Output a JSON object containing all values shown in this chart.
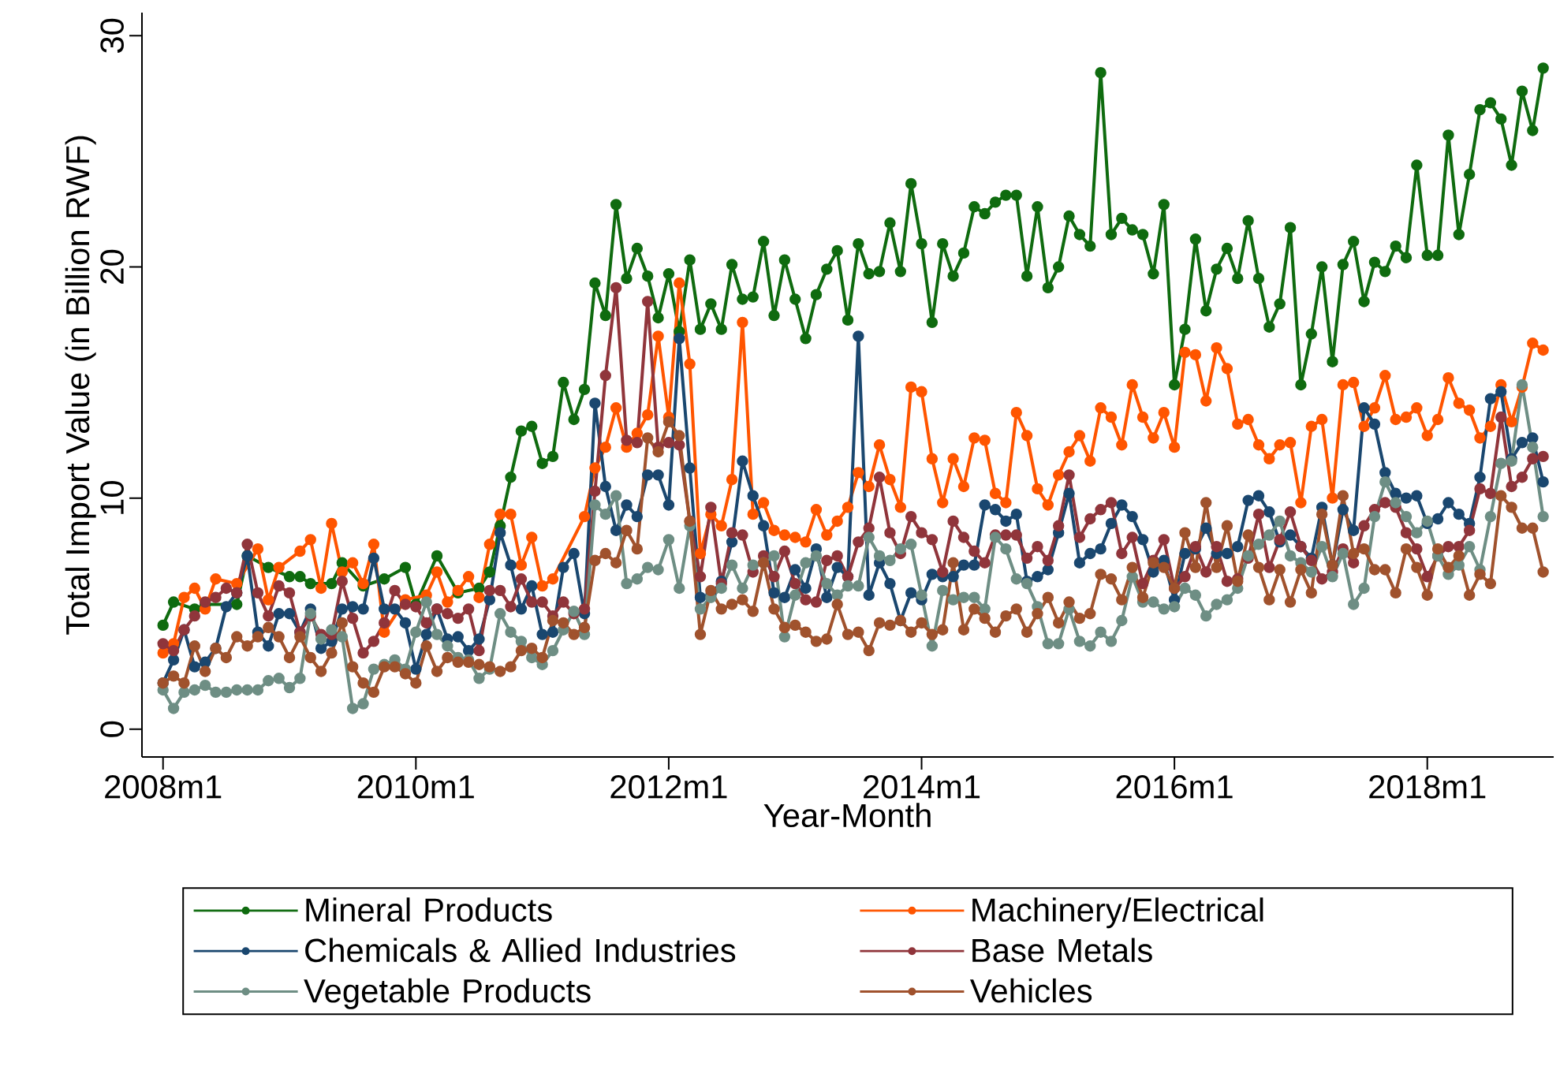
{
  "chart_data": {
    "type": "line",
    "xlabel": "Year-Month",
    "ylabel": "Total Import Value (in Billion RWF)",
    "x": [
      "2008-01",
      "2008-02",
      "2008-03",
      "2008-04",
      "2008-05",
      "2008-06",
      "2008-07",
      "2008-08",
      "2008-09",
      "2008-10",
      "2008-11",
      "2008-12",
      "2009-01",
      "2009-02",
      "2009-03",
      "2009-04",
      "2009-05",
      "2009-06",
      "2009-07",
      "2009-08",
      "2009-09",
      "2009-10",
      "2009-11",
      "2009-12",
      "2010-01",
      "2010-02",
      "2010-03",
      "2010-04",
      "2010-05",
      "2010-06",
      "2010-07",
      "2010-08",
      "2010-09",
      "2010-10",
      "2010-11",
      "2010-12",
      "2011-01",
      "2011-02",
      "2011-03",
      "2011-04",
      "2011-05",
      "2011-06",
      "2011-07",
      "2011-08",
      "2011-09",
      "2011-10",
      "2011-11",
      "2011-12",
      "2012-01",
      "2012-02",
      "2012-03",
      "2012-04",
      "2012-05",
      "2012-06",
      "2012-07",
      "2012-08",
      "2012-09",
      "2012-10",
      "2012-11",
      "2012-12",
      "2013-01",
      "2013-02",
      "2013-03",
      "2013-04",
      "2013-05",
      "2013-06",
      "2013-07",
      "2013-08",
      "2013-09",
      "2013-10",
      "2013-11",
      "2013-12",
      "2014-01",
      "2014-02",
      "2014-03",
      "2014-04",
      "2014-05",
      "2014-06",
      "2014-07",
      "2014-08",
      "2014-09",
      "2014-10",
      "2014-11",
      "2014-12",
      "2015-01",
      "2015-02",
      "2015-03",
      "2015-04",
      "2015-05",
      "2015-06",
      "2015-07",
      "2015-08",
      "2015-09",
      "2015-10",
      "2015-11",
      "2015-12",
      "2016-01",
      "2016-02",
      "2016-03",
      "2016-04",
      "2016-05",
      "2016-06",
      "2016-07",
      "2016-08",
      "2016-09",
      "2016-10",
      "2016-11",
      "2016-12",
      "2017-01",
      "2017-02",
      "2017-03",
      "2017-04",
      "2017-05",
      "2017-06",
      "2017-07",
      "2017-08",
      "2017-09",
      "2017-10",
      "2017-11",
      "2017-12",
      "2018-01",
      "2018-02",
      "2018-03",
      "2018-04",
      "2018-05",
      "2018-06",
      "2018-07",
      "2018-08",
      "2018-09",
      "2018-10",
      "2018-11",
      "2018-12"
    ],
    "xlim": [
      "2007-11",
      "2019-01"
    ],
    "xticks": [
      {
        "value": "2008-01",
        "label": "2008m1"
      },
      {
        "value": "2010-01",
        "label": "2010m1"
      },
      {
        "value": "2012-01",
        "label": "2012m1"
      },
      {
        "value": "2014-01",
        "label": "2014m1"
      },
      {
        "value": "2016-01",
        "label": "2016m1"
      },
      {
        "value": "2018-01",
        "label": "2018m1"
      }
    ],
    "ylim": [
      -1.2,
      31
    ],
    "yticks": [
      0,
      10,
      20,
      30
    ],
    "marker": "circle",
    "legend": "bottom",
    "series": [
      {
        "name": "Mineral Products",
        "color": "#0f6b0f",
        "x": [
          "2008-01",
          "2008-02",
          "2008-04",
          "2008-05",
          "2008-08",
          "2008-09",
          "2008-11",
          "2009-01",
          "2009-02",
          "2009-03",
          "2009-05",
          "2009-06",
          "2009-08",
          "2009-10",
          "2009-12",
          "2010-01",
          "2010-03",
          "2010-05",
          "2010-07",
          "2010-08",
          "2010-09",
          "2010-10",
          "2010-11",
          "2010-12",
          "2011-01",
          "2011-02",
          "2011-03",
          "2011-04",
          "2011-05",
          "2011-06",
          "2011-07",
          "2011-08",
          "2011-09",
          "2011-10",
          "2011-11",
          "2011-12",
          "2012-01",
          "2012-02",
          "2012-03",
          "2012-04",
          "2012-05",
          "2012-06",
          "2012-07",
          "2012-08",
          "2012-09",
          "2012-10",
          "2012-11",
          "2012-12",
          "2013-01",
          "2013-02",
          "2013-03",
          "2013-04",
          "2013-05",
          "2013-06",
          "2013-07",
          "2013-08",
          "2013-09",
          "2013-10",
          "2013-11",
          "2013-12",
          "2014-01",
          "2014-02",
          "2014-03",
          "2014-04",
          "2014-05",
          "2014-06",
          "2014-07",
          "2014-08",
          "2014-09",
          "2014-10",
          "2014-11",
          "2014-12",
          "2015-01",
          "2015-02",
          "2015-03",
          "2015-04",
          "2015-05",
          "2015-06",
          "2015-07",
          "2015-08",
          "2015-09",
          "2015-10",
          "2015-11",
          "2015-12",
          "2016-01",
          "2016-02",
          "2016-03",
          "2016-04",
          "2016-05",
          "2016-06",
          "2016-07",
          "2016-08",
          "2016-09",
          "2016-10",
          "2016-11",
          "2016-12",
          "2017-01",
          "2017-02",
          "2017-03",
          "2017-04",
          "2017-05",
          "2017-06",
          "2017-07",
          "2017-08",
          "2017-09",
          "2017-10",
          "2017-11",
          "2017-12",
          "2018-01",
          "2018-02",
          "2018-03",
          "2018-04",
          "2018-05",
          "2018-06",
          "2018-07",
          "2018-08",
          "2018-09",
          "2018-10",
          "2018-11",
          "2018-12"
        ],
        "values": [
          4.5,
          5.5,
          5.2,
          5.4,
          5.4,
          7.5,
          7.0,
          6.6,
          6.6,
          6.3,
          6.3,
          7.2,
          6.2,
          6.5,
          7.0,
          5.4,
          7.5,
          5.9,
          6.1,
          6.8,
          8.8,
          10.9,
          12.9,
          13.1,
          11.5,
          11.8,
          15.0,
          13.4,
          14.7,
          19.3,
          17.9,
          22.7,
          19.5,
          20.8,
          19.6,
          17.8,
          19.7,
          17.2,
          20.3,
          17.3,
          18.4,
          17.3,
          20.1,
          18.6,
          18.7,
          21.1,
          17.9,
          20.3,
          18.6,
          16.9,
          18.8,
          19.9,
          20.7,
          17.7,
          21.0,
          19.7,
          19.8,
          21.9,
          19.8,
          23.6,
          21.0,
          17.6,
          21.0,
          19.6,
          20.6,
          22.6,
          22.3,
          22.8,
          23.1,
          23.1,
          19.6,
          22.6,
          19.1,
          20.0,
          22.2,
          21.4,
          20.9,
          28.4,
          21.4,
          22.1,
          21.6,
          21.4,
          19.7,
          22.7,
          14.9,
          17.3,
          21.2,
          18.1,
          19.9,
          20.8,
          19.5,
          22.0,
          19.5,
          17.4,
          18.4,
          21.7,
          14.9,
          17.1,
          20.0,
          15.9,
          20.1,
          21.1,
          18.5,
          20.2,
          19.8,
          20.9,
          20.4,
          24.4,
          20.5,
          20.5,
          25.7,
          21.4,
          24.0,
          26.8,
          27.1,
          26.4,
          24.4,
          27.6,
          25.9,
          28.6
        ]
      },
      {
        "name": "Machinery/Electrical",
        "color": "#ff5500",
        "x": [
          "2008-01",
          "2008-02",
          "2008-03",
          "2008-04",
          "2008-05",
          "2008-06",
          "2008-08",
          "2008-10",
          "2008-11",
          "2008-12",
          "2009-02",
          "2009-03",
          "2009-04",
          "2009-05",
          "2009-06",
          "2009-07",
          "2009-08",
          "2009-09",
          "2009-10",
          "2009-12",
          "2010-02",
          "2010-03",
          "2010-04",
          "2010-05",
          "2010-06",
          "2010-07",
          "2010-08",
          "2010-09",
          "2010-10",
          "2010-11",
          "2010-12",
          "2011-01",
          "2011-02",
          "2011-05",
          "2011-06",
          "2011-07",
          "2011-08",
          "2011-09",
          "2011-10",
          "2011-11",
          "2011-12",
          "2012-01",
          "2012-02",
          "2012-03",
          "2012-04",
          "2012-05",
          "2012-06",
          "2012-07",
          "2012-08",
          "2012-09",
          "2012-10",
          "2012-11",
          "2012-12",
          "2013-01",
          "2013-02",
          "2013-03",
          "2013-04",
          "2013-05",
          "2013-06",
          "2013-07",
          "2013-08",
          "2013-09",
          "2013-10",
          "2013-11",
          "2013-12",
          "2014-01",
          "2014-02",
          "2014-03",
          "2014-04",
          "2014-05",
          "2014-06",
          "2014-07",
          "2014-08",
          "2014-09",
          "2014-10",
          "2014-11",
          "2014-12",
          "2015-01",
          "2015-02",
          "2015-03",
          "2015-04",
          "2015-05",
          "2015-06",
          "2015-07",
          "2015-08",
          "2015-09",
          "2015-10",
          "2015-11",
          "2015-12",
          "2016-01",
          "2016-02",
          "2016-03",
          "2016-04",
          "2016-05",
          "2016-06",
          "2016-07",
          "2016-08",
          "2016-09",
          "2016-10",
          "2016-11",
          "2016-12",
          "2017-01",
          "2017-02",
          "2017-03",
          "2017-04",
          "2017-05",
          "2017-06",
          "2017-07",
          "2017-08",
          "2017-09",
          "2017-10",
          "2017-11",
          "2017-12",
          "2018-01",
          "2018-02",
          "2018-03",
          "2018-04",
          "2018-05",
          "2018-06",
          "2018-07",
          "2018-08",
          "2018-09",
          "2018-10",
          "2018-11",
          "2018-12"
        ],
        "values": [
          3.3,
          3.7,
          5.7,
          6.1,
          5.2,
          6.5,
          6.3,
          7.8,
          5.6,
          7.0,
          7.7,
          8.2,
          6.1,
          8.9,
          6.8,
          7.2,
          6.3,
          8.0,
          4.2,
          5.6,
          5.8,
          6.8,
          5.5,
          6.0,
          6.6,
          5.7,
          8.0,
          9.3,
          9.3,
          7.1,
          8.3,
          6.2,
          6.5,
          9.2,
          11.3,
          12.2,
          13.9,
          12.2,
          12.8,
          13.6,
          17.0,
          13.5,
          19.3,
          15.8,
          7.6,
          9.3,
          8.8,
          10.8,
          17.6,
          9.3,
          9.8,
          8.6,
          8.4,
          8.3,
          8.1,
          9.5,
          8.4,
          9.0,
          9.6,
          11.1,
          10.5,
          12.3,
          10.8,
          9.6,
          14.8,
          14.6,
          11.7,
          9.8,
          11.7,
          10.5,
          12.6,
          12.5,
          10.2,
          9.8,
          13.7,
          12.7,
          10.4,
          9.7,
          11.0,
          12.0,
          12.7,
          11.6,
          13.9,
          13.5,
          12.3,
          14.9,
          13.5,
          12.6,
          13.7,
          12.2,
          16.3,
          16.2,
          14.2,
          16.5,
          15.6,
          13.2,
          13.4,
          12.3,
          11.7,
          12.3,
          12.4,
          9.8,
          13.1,
          13.4,
          10.0,
          14.9,
          15.0,
          13.1,
          13.9,
          15.3,
          13.4,
          13.5,
          13.9,
          12.7,
          13.4,
          15.2,
          14.1,
          13.8,
          12.6,
          13.1,
          14.9,
          13.3,
          14.8,
          16.7,
          16.4
        ]
      },
      {
        "name": "Chemicals & Allied Industries",
        "color": "#1a476f",
        "values": [
          2.0,
          3.0,
          4.3,
          2.7,
          2.9,
          3.5,
          5.3,
          5.9,
          7.5,
          4.2,
          3.6,
          5.0,
          5.0,
          4.2,
          5.2,
          3.5,
          3.8,
          5.2,
          5.3,
          5.2,
          7.4,
          5.2,
          5.2,
          4.6,
          2.6,
          4.1,
          5.2,
          3.9,
          4.0,
          3.4,
          3.9,
          5.6,
          8.5,
          7.1,
          5.2,
          6.2,
          4.1,
          4.2,
          7.0,
          7.6,
          5.0,
          14.1,
          10.5,
          8.6,
          9.7,
          9.2,
          11.0,
          11.0,
          9.7,
          16.9,
          11.3,
          5.7,
          5.8,
          6.4,
          8.1,
          11.6,
          10.1,
          8.8,
          5.9,
          5.7,
          6.9,
          6.1,
          7.8,
          5.7,
          7.0,
          6.6,
          17.0,
          5.8,
          7.2,
          6.3,
          4.7,
          5.9,
          5.6,
          6.7,
          6.6,
          6.6,
          7.1,
          7.1,
          9.7,
          9.5,
          9.0,
          9.3,
          6.4,
          6.6,
          6.9,
          8.5,
          10.2,
          7.2,
          7.6,
          7.8,
          8.9,
          9.7,
          9.2,
          8.2,
          6.8,
          7.3,
          5.6,
          7.6,
          7.8,
          8.7,
          7.6,
          7.6,
          7.9,
          9.9,
          10.1,
          9.4,
          8.1,
          8.4,
          7.9,
          7.4,
          9.6,
          7.1,
          9.5,
          8.6,
          13.9,
          13.2,
          11.1,
          10.2,
          10.0,
          10.1,
          8.9,
          9.1,
          9.8,
          9.3,
          8.9,
          10.9,
          14.3,
          14.6,
          11.7,
          12.4,
          12.6,
          10.7
        ]
      },
      {
        "name": "Base Metals",
        "color": "#90353b",
        "values": [
          3.7,
          3.4,
          4.3,
          4.9,
          5.5,
          5.7,
          6.1,
          5.9,
          8.0,
          5.9,
          4.9,
          6.2,
          5.9,
          4.2,
          4.9,
          4.1,
          4.1,
          6.4,
          4.8,
          3.3,
          3.8,
          4.6,
          6.0,
          5.4,
          5.3,
          4.6,
          5.2,
          5.0,
          4.8,
          5.2,
          3.4,
          6.0,
          6.0,
          5.3,
          6.5,
          5.5,
          5.5,
          4.9,
          5.5,
          5.0,
          5.2,
          10.3,
          15.3,
          19.1,
          12.5,
          12.4,
          18.5,
          12.2,
          12.4,
          12.3,
          9.0,
          6.6,
          9.6,
          6.3,
          8.5,
          8.4,
          6.8,
          7.5,
          6.6,
          7.7,
          6.3,
          5.6,
          5.5,
          7.3,
          7.5,
          6.6,
          8.1,
          8.7,
          10.9,
          8.5,
          7.6,
          9.2,
          8.5,
          8.2,
          6.8,
          9.0,
          8.3,
          7.7,
          7.2,
          8.4,
          8.4,
          8.4,
          7.4,
          7.9,
          7.3,
          8.8,
          11.0,
          8.3,
          9.1,
          9.5,
          9.8,
          7.6,
          8.3,
          6.3,
          7.3,
          8.2,
          6.1,
          6.6,
          7.9,
          6.8,
          7.9,
          6.4,
          6.5,
          7.4,
          9.3,
          7.0,
          8.2,
          9.4,
          7.9,
          7.3,
          6.5,
          6.8,
          7.8,
          7.2,
          8.8,
          9.5,
          9.8,
          9.6,
          8.5,
          7.8,
          6.6,
          7.5,
          7.9,
          7.9,
          8.6,
          10.4,
          10.2,
          13.5,
          10.5,
          10.9,
          11.7,
          11.8
        ]
      },
      {
        "name": "Vegetable Products",
        "color": "#6e8e84",
        "values": [
          1.7,
          0.9,
          1.6,
          1.7,
          1.9,
          1.6,
          1.6,
          1.7,
          1.7,
          1.7,
          2.1,
          2.2,
          1.8,
          2.2,
          5.0,
          3.9,
          4.3,
          4.0,
          0.9,
          1.1,
          2.6,
          2.8,
          3.0,
          2.6,
          4.2,
          5.5,
          4.1,
          3.6,
          3.1,
          3.0,
          2.2,
          2.6,
          5.0,
          4.2,
          3.8,
          3.1,
          2.8,
          3.4,
          4.3,
          5.1,
          4.1,
          9.7,
          9.3,
          10.1,
          6.3,
          6.5,
          7.0,
          6.9,
          8.2,
          6.1,
          8.8,
          5.2,
          5.7,
          6.1,
          7.1,
          6.1,
          7.1,
          7.2,
          7.5,
          4.0,
          5.8,
          7.2,
          7.5,
          6.3,
          5.8,
          6.2,
          6.2,
          8.3,
          7.5,
          7.3,
          7.8,
          8.0,
          5.8,
          3.6,
          6.0,
          5.6,
          5.7,
          5.7,
          5.2,
          8.3,
          7.8,
          6.5,
          6.3,
          5.3,
          3.7,
          3.7,
          5.2,
          3.8,
          3.6,
          4.2,
          3.8,
          4.7,
          6.6,
          5.5,
          5.5,
          5.2,
          5.3,
          6.1,
          5.8,
          4.9,
          5.4,
          5.6,
          6.1,
          7.5,
          8.0,
          8.4,
          9.0,
          7.5,
          7.2,
          6.8,
          7.9,
          6.6,
          7.6,
          5.4,
          6.1,
          9.2,
          10.7,
          9.8,
          9.2,
          8.5,
          9.0,
          7.5,
          6.7,
          7.1,
          7.9,
          6.9,
          9.2,
          11.5,
          11.6,
          14.9,
          12.2,
          9.2
        ]
      },
      {
        "name": "Vehicles",
        "color": "#a0522d",
        "values": [
          2.0,
          2.3,
          2.0,
          3.6,
          2.5,
          3.5,
          3.1,
          4.0,
          3.6,
          4.0,
          4.4,
          4.0,
          3.1,
          4.0,
          3.1,
          2.5,
          3.3,
          4.6,
          2.7,
          2.0,
          1.6,
          2.7,
          2.7,
          2.4,
          2.0,
          3.6,
          2.5,
          3.1,
          2.9,
          2.9,
          2.8,
          2.7,
          2.5,
          2.7,
          3.4,
          3.5,
          3.1,
          4.7,
          4.6,
          4.1,
          4.4,
          7.3,
          7.6,
          7.2,
          8.6,
          7.8,
          12.6,
          12.0,
          13.3,
          12.7,
          9.0,
          4.1,
          6.0,
          5.2,
          5.4,
          5.6,
          5.1,
          7.2,
          5.2,
          4.4,
          4.5,
          4.2,
          3.8,
          3.9,
          5.4,
          4.1,
          4.2,
          3.4,
          4.6,
          4.5,
          4.7,
          4.2,
          4.6,
          4.1,
          4.3,
          7.2,
          4.3,
          5.2,
          4.8,
          4.2,
          4.9,
          5.2,
          4.2,
          5.0,
          5.7,
          4.6,
          5.5,
          4.8,
          5.0,
          6.7,
          6.5,
          5.6,
          7.0,
          5.7,
          7.2,
          7.0,
          6.1,
          8.5,
          7.0,
          9.8,
          7.0,
          8.8,
          6.4,
          8.4,
          7.0,
          5.6,
          6.9,
          5.5,
          6.9,
          5.9,
          9.3,
          7.1,
          10.1,
          7.6,
          7.8,
          6.9,
          6.9,
          5.9,
          7.8,
          7.0,
          5.8,
          7.8,
          7.0,
          7.5,
          5.8,
          6.7,
          6.3,
          10.1,
          9.6,
          8.7,
          8.7,
          6.8
        ]
      }
    ]
  }
}
